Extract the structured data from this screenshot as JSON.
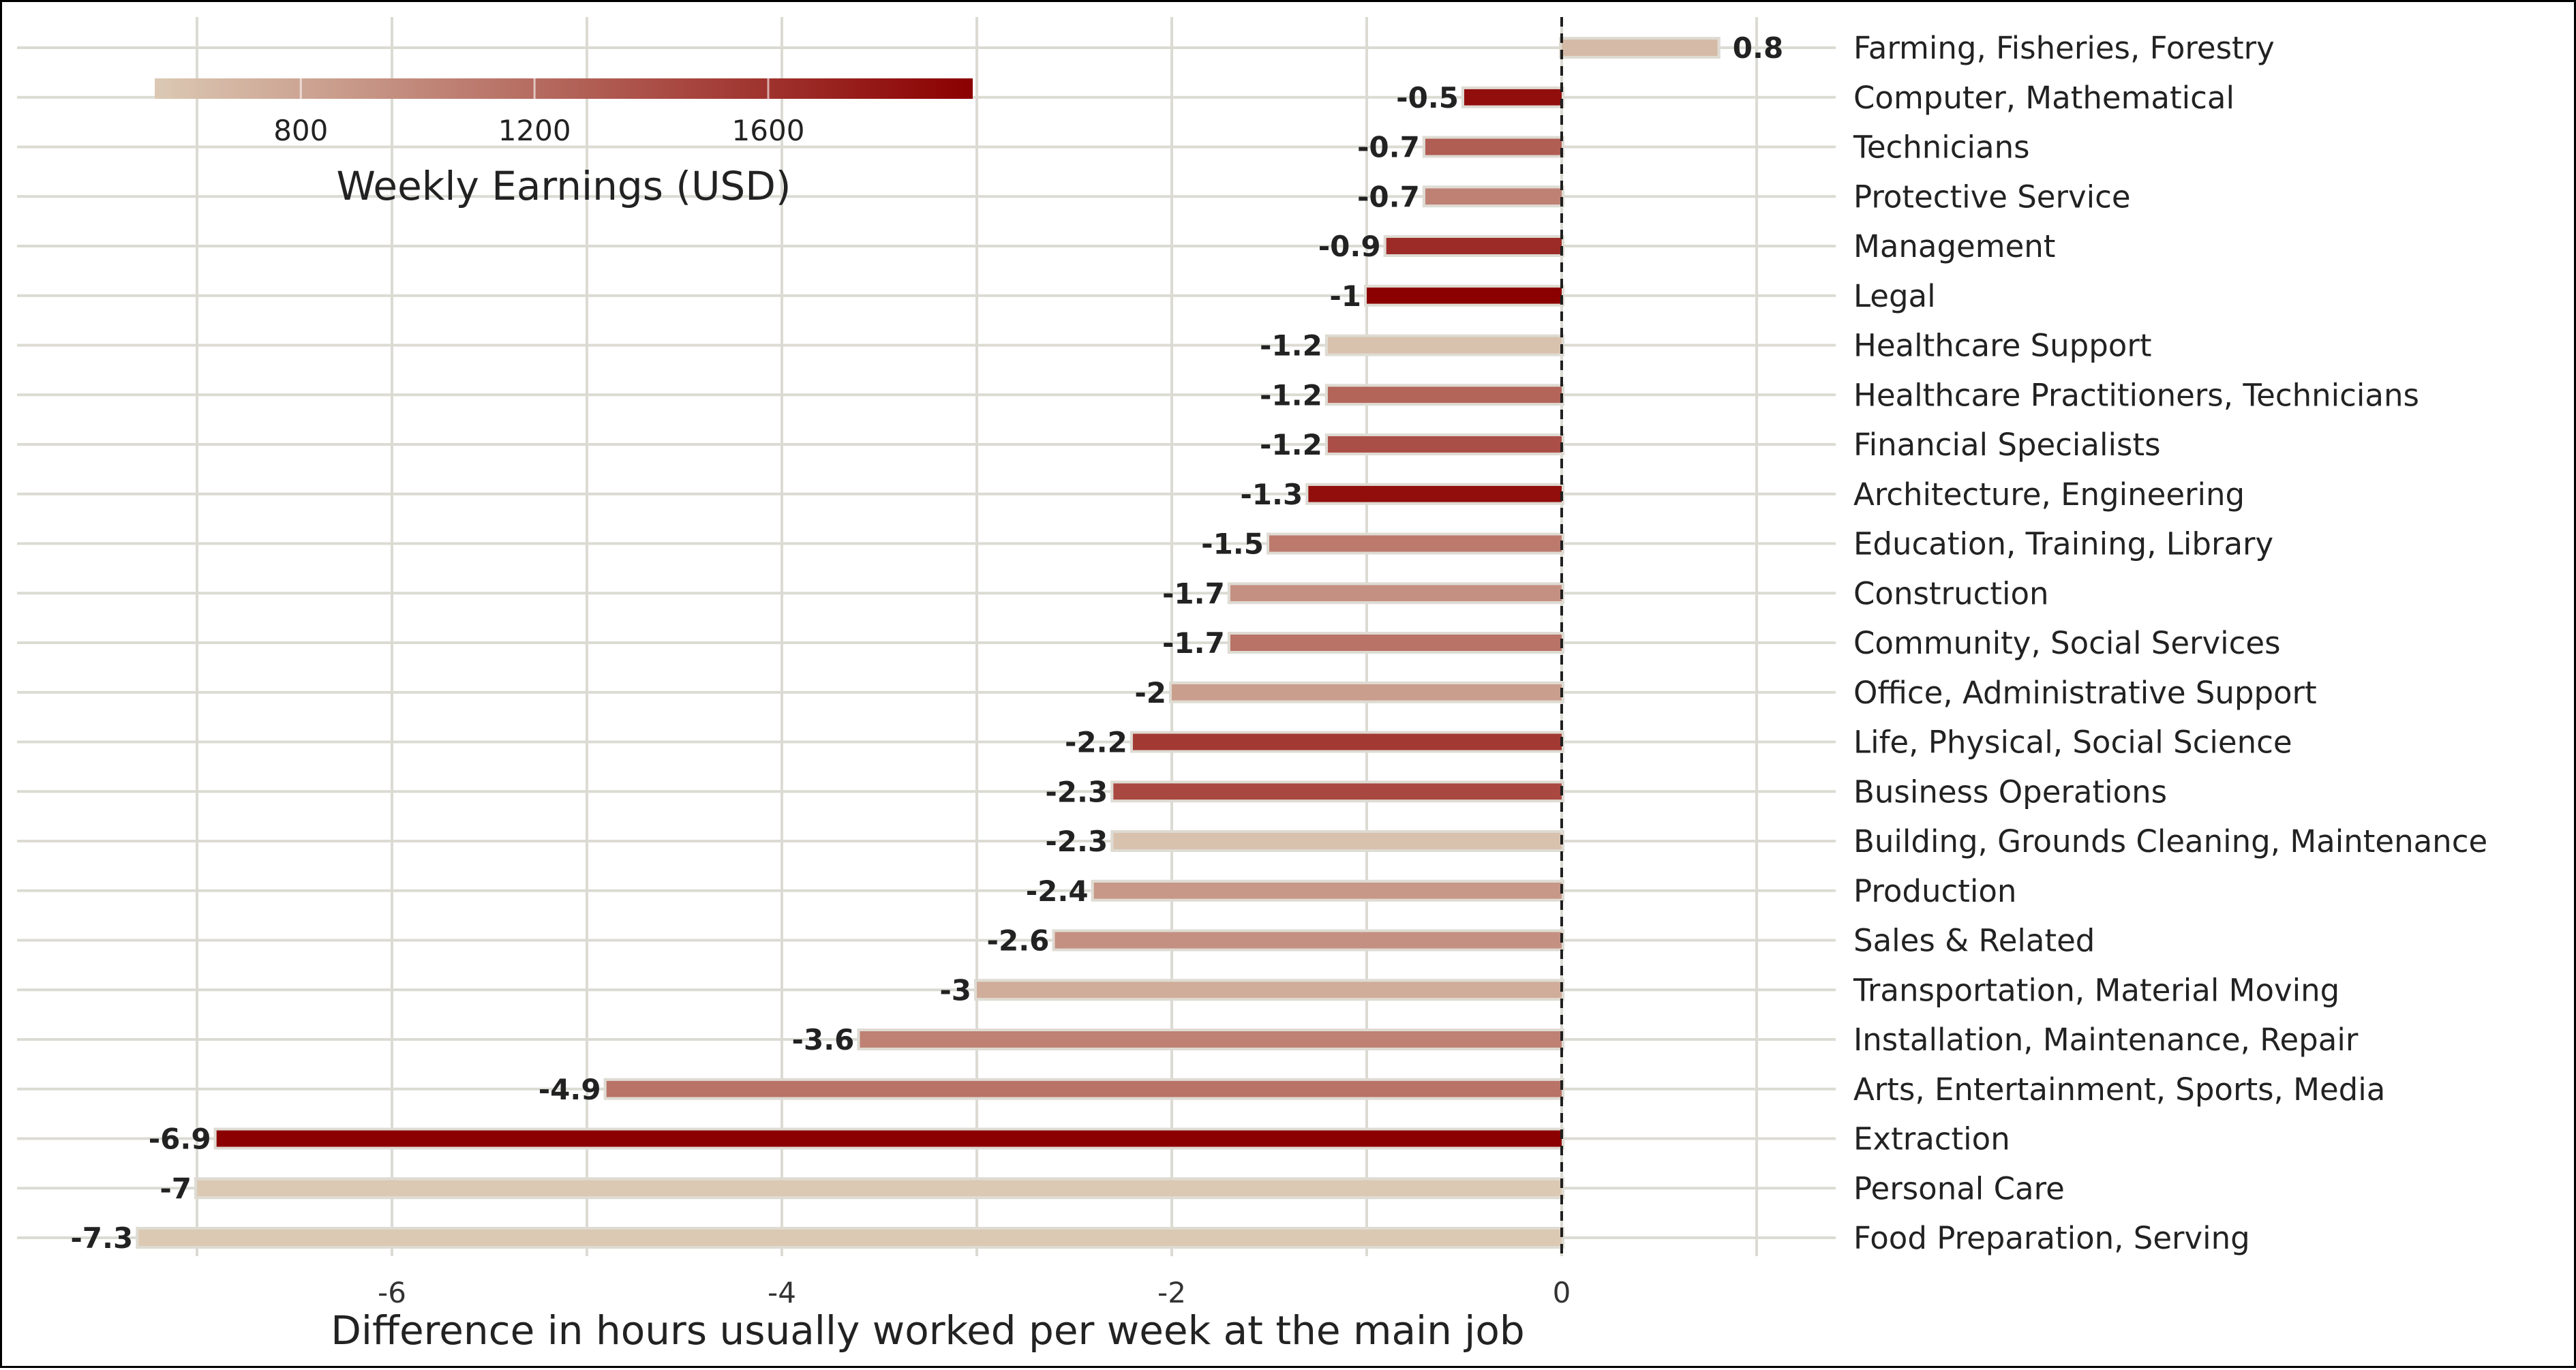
{
  "chart_data": {
    "type": "bar",
    "orientation": "horizontal",
    "title": "",
    "xlabel": "Difference in hours usually worked per week at the main job",
    "ylabel": "",
    "xlim": [
      -7.6,
      1.3
    ],
    "x_ticks": [
      -6,
      -4,
      -2,
      0
    ],
    "x_tick_labels": [
      "-6",
      "-4",
      "-2",
      "0"
    ],
    "grid": true,
    "reference_line": {
      "x": 0,
      "style": "dashed"
    },
    "color_scale": {
      "title": "Weekly Earnings (USD)",
      "range": [
        550,
        1950
      ],
      "ticks": [
        800,
        1200,
        1600
      ],
      "tick_labels": [
        "800",
        "1200",
        "1600"
      ],
      "color_low": "#dbc9b4",
      "color_high": "#8b0000",
      "placement": "top-left"
    },
    "categories": [
      "Farming, Fisheries, Forestry",
      "Computer, Mathematical",
      "Technicians",
      "Protective Service",
      "Management",
      "Legal",
      "Healthcare Support",
      "Healthcare Practitioners, Technicians",
      "Financial Specialists",
      "Architecture, Engineering",
      "Education, Training, Library",
      "Construction",
      "Community, Social Services",
      "Office, Administrative Support",
      "Life, Physical, Social Science",
      "Business Operations",
      "Building, Grounds Cleaning, Maintenance",
      "Production",
      "Sales & Related",
      "Transportation, Material Moving",
      "Installation, Maintenance, Repair",
      "Arts, Entertainment, Sports, Media",
      "Extraction",
      "Personal Care",
      "Food Preparation, Serving"
    ],
    "values": [
      0.8,
      -0.5,
      -0.7,
      -0.7,
      -0.9,
      -1,
      -1.2,
      -1.2,
      -1.2,
      -1.3,
      -1.5,
      -1.7,
      -1.7,
      -2,
      -2.2,
      -2.3,
      -2.3,
      -2.4,
      -2.6,
      -3,
      -3.6,
      -4.9,
      -6.9,
      -7,
      -7.3
    ],
    "value_labels": [
      "0.8",
      "-0.5",
      "-0.7",
      "-0.7",
      "-0.9",
      "-1",
      "-1.2",
      "-1.2",
      "-1.2",
      "-1.3",
      "-1.5",
      "-1.7",
      "-1.7",
      "-2",
      "-2.2",
      "-2.3",
      "-2.3",
      "-2.4",
      "-2.6",
      "-3",
      "-3.6",
      "-4.9",
      "-6.9",
      "-7",
      "-7.3"
    ],
    "weekly_earnings": [
      650,
      1850,
      1300,
      1050,
      1650,
      1950,
      600,
      1250,
      1400,
      1850,
      1100,
      950,
      1150,
      850,
      1550,
      1450,
      600,
      900,
      950,
      750,
      1050,
      1150,
      1950,
      550,
      550
    ]
  }
}
